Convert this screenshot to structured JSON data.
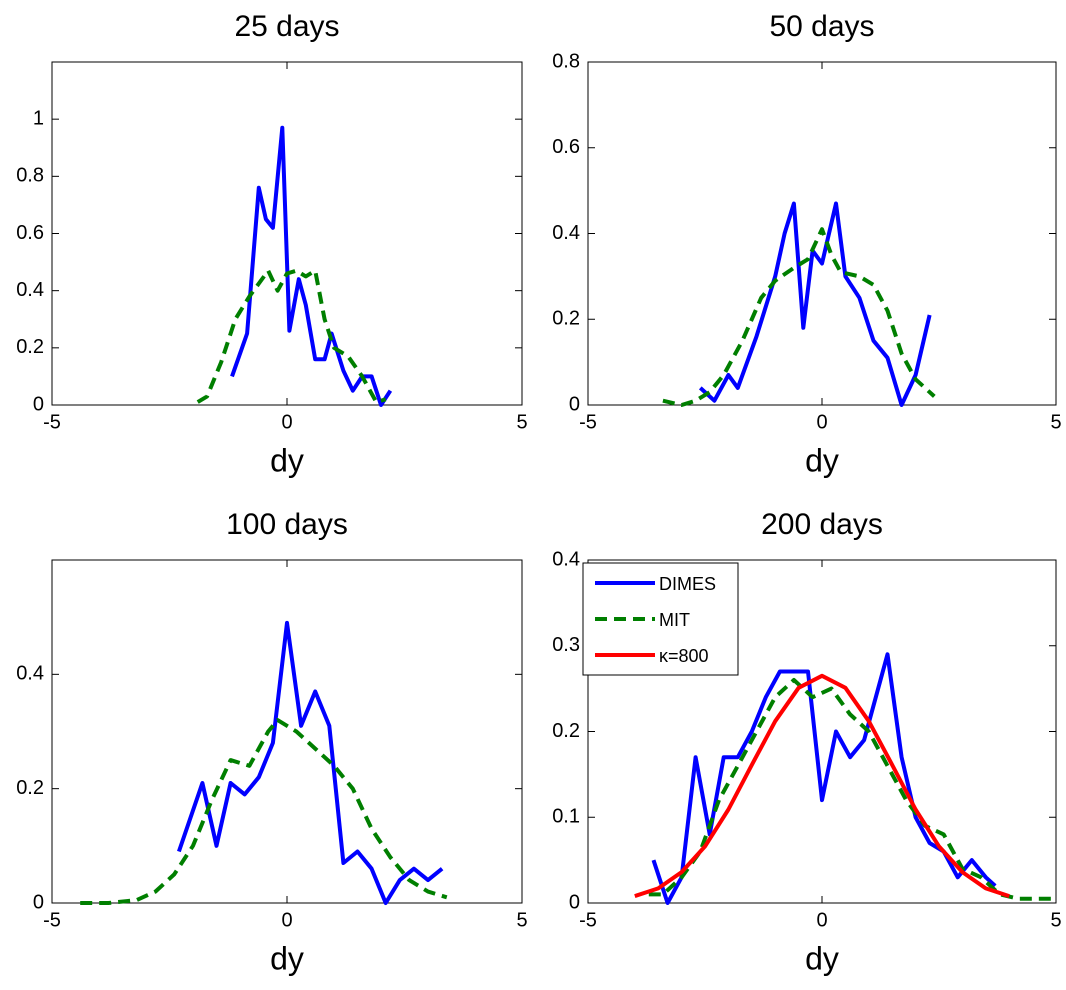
{
  "chart_data": [
    {
      "type": "line",
      "title": "25 days",
      "xlabel": "dy",
      "xlim": [
        -5,
        5
      ],
      "xticks": [
        -5,
        0,
        5
      ],
      "ylim": [
        0,
        1.2
      ],
      "yticks": [
        0,
        0.2,
        0.4,
        0.6,
        0.8,
        1
      ],
      "series": [
        {
          "color": "#0000ff",
          "dash": "solid",
          "x": [
            -1.17,
            -0.85,
            -0.6,
            -0.45,
            -0.3,
            -0.1,
            0.05,
            0.25,
            0.4,
            0.6,
            0.8,
            0.95,
            1.2,
            1.4,
            1.6,
            1.8,
            2.0,
            2.2
          ],
          "values": [
            0.1,
            0.25,
            0.76,
            0.65,
            0.62,
            0.97,
            0.26,
            0.44,
            0.35,
            0.16,
            0.16,
            0.25,
            0.12,
            0.05,
            0.1,
            0.1,
            0.0,
            0.05
          ]
        },
        {
          "color": "#007f00",
          "dash": "dashed",
          "x": [
            -1.9,
            -1.7,
            -1.4,
            -1.1,
            -0.8,
            -0.4,
            -0.2,
            0,
            0.2,
            0.4,
            0.6,
            0.8,
            1.0,
            1.3,
            1.6,
            1.9,
            2.1
          ],
          "values": [
            0.01,
            0.03,
            0.15,
            0.3,
            0.38,
            0.47,
            0.4,
            0.46,
            0.47,
            0.45,
            0.47,
            0.3,
            0.2,
            0.17,
            0.1,
            0.01,
            0.02
          ]
        }
      ]
    },
    {
      "type": "line",
      "title": "50 days",
      "xlabel": "dy",
      "xlim": [
        -5,
        5
      ],
      "xticks": [
        -5,
        0,
        5
      ],
      "ylim": [
        0,
        0.8
      ],
      "yticks": [
        0,
        0.2,
        0.4,
        0.6,
        0.8
      ],
      "series": [
        {
          "color": "#0000ff",
          "dash": "solid",
          "x": [
            -2.6,
            -2.3,
            -2.0,
            -1.8,
            -1.4,
            -1.0,
            -0.8,
            -0.6,
            -0.4,
            -0.2,
            0.0,
            0.3,
            0.5,
            0.8,
            1.1,
            1.4,
            1.7,
            2.0,
            2.3
          ],
          "values": [
            0.04,
            0.01,
            0.07,
            0.04,
            0.16,
            0.3,
            0.4,
            0.47,
            0.18,
            0.36,
            0.33,
            0.47,
            0.3,
            0.25,
            0.15,
            0.11,
            0.0,
            0.07,
            0.21
          ]
        },
        {
          "color": "#007f00",
          "dash": "dashed",
          "x": [
            -3.4,
            -3.0,
            -2.7,
            -2.4,
            -2.1,
            -1.7,
            -1.3,
            -1.0,
            -0.6,
            -0.3,
            0,
            0.2,
            0.4,
            0.8,
            1.1,
            1.4,
            1.7,
            2.0,
            2.4
          ],
          "values": [
            0.01,
            0.0,
            0.01,
            0.03,
            0.07,
            0.15,
            0.25,
            0.29,
            0.32,
            0.34,
            0.41,
            0.35,
            0.31,
            0.3,
            0.28,
            0.22,
            0.12,
            0.06,
            0.02
          ]
        }
      ]
    },
    {
      "type": "line",
      "title": "100 days",
      "xlabel": "dy",
      "xlim": [
        -5,
        5
      ],
      "xticks": [
        -5,
        0,
        5
      ],
      "ylim": [
        0,
        0.6
      ],
      "yticks": [
        0,
        0.2,
        0.4
      ],
      "series": [
        {
          "color": "#0000ff",
          "dash": "solid",
          "x": [
            -2.3,
            -1.8,
            -1.5,
            -1.2,
            -0.9,
            -0.6,
            -0.3,
            0,
            0.3,
            0.6,
            0.9,
            1.2,
            1.5,
            1.8,
            2.1,
            2.4,
            2.7,
            3.0,
            3.3
          ],
          "values": [
            0.09,
            0.21,
            0.1,
            0.21,
            0.19,
            0.22,
            0.28,
            0.49,
            0.31,
            0.37,
            0.31,
            0.07,
            0.09,
            0.06,
            0.0,
            0.04,
            0.06,
            0.04,
            0.06
          ]
        },
        {
          "color": "#007f00",
          "dash": "dashed",
          "x": [
            -4.4,
            -3.8,
            -3.2,
            -2.8,
            -2.4,
            -2.0,
            -1.6,
            -1.2,
            -0.8,
            -0.4,
            -0.2,
            0.2,
            0.6,
            1.0,
            1.4,
            1.8,
            2.2,
            2.6,
            3.0,
            3.4
          ],
          "values": [
            0.0,
            0.0,
            0.005,
            0.02,
            0.05,
            0.1,
            0.18,
            0.25,
            0.24,
            0.3,
            0.32,
            0.3,
            0.27,
            0.24,
            0.2,
            0.13,
            0.08,
            0.04,
            0.02,
            0.01
          ]
        }
      ]
    },
    {
      "type": "line",
      "title": "200 days",
      "xlabel": "dy",
      "xlim": [
        -5,
        5
      ],
      "xticks": [
        -5,
        0,
        5
      ],
      "ylim": [
        0,
        0.4
      ],
      "yticks": [
        0,
        0.1,
        0.2,
        0.3,
        0.4
      ],
      "legend": "upper left",
      "series": [
        {
          "name": "DIMES",
          "color": "#0000ff",
          "dash": "solid",
          "x": [
            -3.6,
            -3.3,
            -3.0,
            -2.7,
            -2.4,
            -2.1,
            -1.8,
            -1.5,
            -1.2,
            -0.9,
            -0.6,
            -0.3,
            0,
            0.3,
            0.6,
            0.9,
            1.4,
            1.7,
            2.0,
            2.3,
            2.6,
            2.9,
            3.2,
            3.5,
            3.7
          ],
          "values": [
            0.05,
            0.0,
            0.03,
            0.17,
            0.08,
            0.17,
            0.17,
            0.2,
            0.24,
            0.27,
            0.27,
            0.27,
            0.12,
            0.2,
            0.17,
            0.19,
            0.29,
            0.17,
            0.1,
            0.07,
            0.06,
            0.03,
            0.05,
            0.03,
            0.02
          ]
        },
        {
          "name": "MIT",
          "color": "#007f00",
          "dash": "dashed",
          "x": [
            -3.7,
            -3.4,
            -3.0,
            -2.6,
            -2.2,
            -1.8,
            -1.4,
            -1.0,
            -0.6,
            -0.2,
            0.2,
            0.6,
            1.0,
            1.4,
            1.8,
            2.2,
            2.6,
            3.0,
            3.4,
            3.8,
            4.2,
            4.6,
            5
          ],
          "values": [
            0.01,
            0.01,
            0.03,
            0.06,
            0.12,
            0.16,
            0.2,
            0.24,
            0.26,
            0.24,
            0.25,
            0.22,
            0.2,
            0.16,
            0.12,
            0.09,
            0.08,
            0.04,
            0.03,
            0.01,
            0.005,
            0.005,
            0.005
          ]
        },
        {
          "name": "κ=800",
          "color": "#ff0000",
          "dash": "solid",
          "x": [
            -4,
            -3.5,
            -3,
            -2.5,
            -2,
            -1.5,
            -1,
            -0.5,
            0,
            0.5,
            1,
            1.5,
            2,
            2.5,
            3,
            3.5,
            4
          ],
          "values": [
            0.008,
            0.017,
            0.036,
            0.066,
            0.109,
            0.161,
            0.212,
            0.251,
            0.265,
            0.251,
            0.212,
            0.161,
            0.109,
            0.066,
            0.036,
            0.017,
            0.008
          ]
        }
      ]
    }
  ]
}
